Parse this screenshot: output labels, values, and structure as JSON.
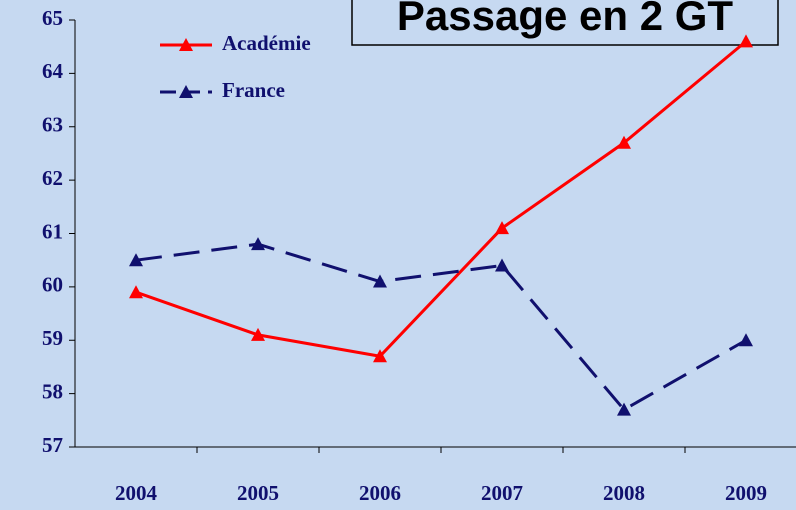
{
  "chart_data": {
    "type": "line",
    "title": "Passage en 2 GT",
    "categories": [
      "2004",
      "2005",
      "2006",
      "2007",
      "2008",
      "2009"
    ],
    "series": [
      {
        "name": "Académie",
        "color": "#ff0000",
        "dash": false,
        "values": [
          59.9,
          59.1,
          58.7,
          61.1,
          62.7,
          64.6
        ]
      },
      {
        "name": "France",
        "color": "#10106e",
        "dash": true,
        "values": [
          60.5,
          60.8,
          60.1,
          60.4,
          57.7,
          59.0
        ]
      }
    ],
    "ylim": [
      57,
      65
    ],
    "yticks": [
      57,
      58,
      59,
      60,
      61,
      62,
      63,
      64,
      65
    ],
    "grid": false,
    "legend": "upper left"
  }
}
